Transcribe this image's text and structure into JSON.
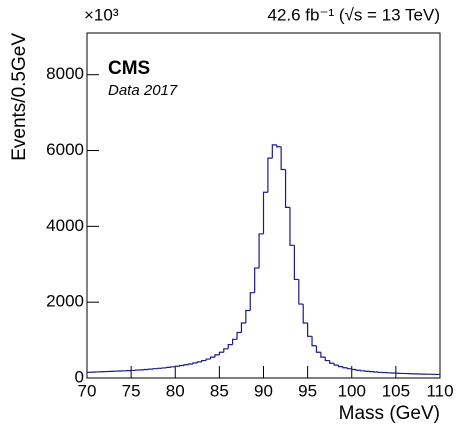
{
  "chart_data": {
    "type": "histogram",
    "multiplier": "×10³",
    "luminosity": "42.6 fb⁻¹ (√s = 13 TeV)",
    "experiment": "CMS",
    "subtitle": "Data 2017",
    "xlabel": "Mass (GeV)",
    "ylabel": "Events/0.5GeV",
    "color": "#1a1a8c",
    "bins": [
      70,
      70.5,
      71,
      71.5,
      72,
      72.5,
      73,
      73.5,
      74,
      74.5,
      75,
      75.5,
      76,
      76.5,
      77,
      77.5,
      78,
      78.5,
      79,
      79.5,
      80,
      80.5,
      81,
      81.5,
      82,
      82.5,
      83,
      83.5,
      84,
      84.5,
      85,
      85.5,
      86,
      86.5,
      87,
      87.5,
      88,
      88.5,
      89,
      89.5,
      90,
      90.5,
      91,
      91.5,
      92,
      92.5,
      93,
      93.5,
      94,
      94.5,
      95,
      95.5,
      96,
      96.5,
      97,
      97.5,
      98,
      98.5,
      99,
      99.5,
      100,
      100.5,
      101,
      101.5,
      102,
      102.5,
      103,
      103.5,
      104,
      104.5,
      105,
      105.5,
      106,
      106.5,
      107,
      107.5,
      108,
      108.5,
      109,
      109.5,
      110
    ],
    "values": [
      150,
      155,
      160,
      165,
      170,
      175,
      180,
      185,
      190,
      195,
      200,
      210,
      215,
      225,
      235,
      245,
      255,
      265,
      280,
      295,
      310,
      330,
      350,
      370,
      395,
      425,
      460,
      500,
      550,
      610,
      680,
      770,
      880,
      1020,
      1200,
      1450,
      1780,
      2250,
      2900,
      3800,
      4900,
      5800,
      6150,
      6100,
      5500,
      4500,
      3500,
      2600,
      1950,
      1450,
      1100,
      850,
      680,
      550,
      460,
      390,
      340,
      300,
      270,
      245,
      225,
      205,
      190,
      178,
      168,
      158,
      150,
      143,
      137,
      131,
      126,
      121,
      117,
      113,
      109,
      106,
      103,
      100,
      97,
      94
    ],
    "xlim": [
      70,
      110
    ],
    "ylim": [
      0,
      9100
    ],
    "xticks": [
      70,
      75,
      80,
      85,
      90,
      95,
      100,
      105,
      110
    ],
    "yticks": [
      0,
      2000,
      4000,
      6000,
      8000
    ]
  }
}
